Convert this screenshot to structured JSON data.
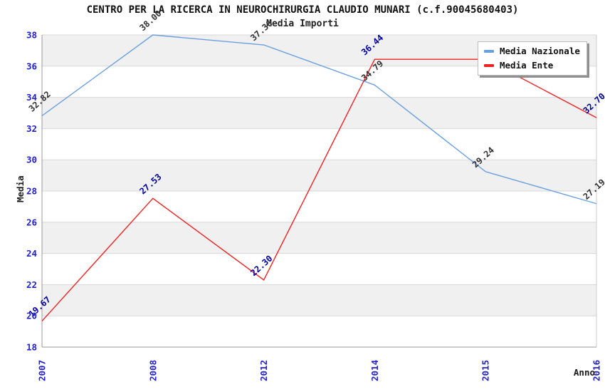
{
  "title": "CENTRO PER LA RICERCA IN NEUROCHIRURGIA CLAUDIO MUNARI (c.f.90045680403)",
  "subtitle": "Media Importi",
  "legend": {
    "position": "top-right",
    "items": [
      {
        "label": "Media Nazionale",
        "color": "#6ba0df"
      },
      {
        "label": "Media Ente",
        "color": "#ee2222"
      }
    ]
  },
  "colors": {
    "band": "#f0f0f0",
    "grid": "#d8d8d8",
    "frame": "#cccccc",
    "axis": "#9a9a9a",
    "tick_label": "#2222cc",
    "national_line": "#6ba0df",
    "ente_line": "#ee2222",
    "national_point_label": "#333333",
    "ente_point_label": "#000099"
  },
  "chart_data": {
    "type": "line",
    "title": "CENTRO PER LA RICERCA IN NEUROCHIRURGIA CLAUDIO MUNARI (c.f.90045680403)",
    "subtitle": "Media Importi",
    "xlabel": "Anno",
    "ylabel": "Media",
    "categories": [
      "2007",
      "2008",
      "2012",
      "2014",
      "2015",
      "2016"
    ],
    "series": [
      {
        "name": "Media Nazionale",
        "color": "#6ba0df",
        "values": [
          32.82,
          38.0,
          37.36,
          34.79,
          29.24,
          27.19
        ],
        "labels": [
          "32.82",
          "38.00",
          "37.36",
          "34.79",
          "29.24",
          "27.19"
        ],
        "label_color": "#333333"
      },
      {
        "name": "Media Ente",
        "color": "#ee2222",
        "values": [
          19.67,
          27.53,
          22.3,
          36.44,
          36.44,
          32.7
        ],
        "labels": [
          "19.67",
          "27.53",
          "22.30",
          "36.44",
          "",
          "32.70"
        ],
        "label_color": "#000099"
      }
    ],
    "ylim": [
      18,
      38
    ],
    "yticks": [
      18,
      20,
      22,
      24,
      26,
      28,
      30,
      32,
      34,
      36,
      38
    ],
    "grid": "horizontal",
    "banded_background": true,
    "legend_position": "top-right",
    "label_angle_deg": -42,
    "x_tick_rotation_deg": -90
  }
}
